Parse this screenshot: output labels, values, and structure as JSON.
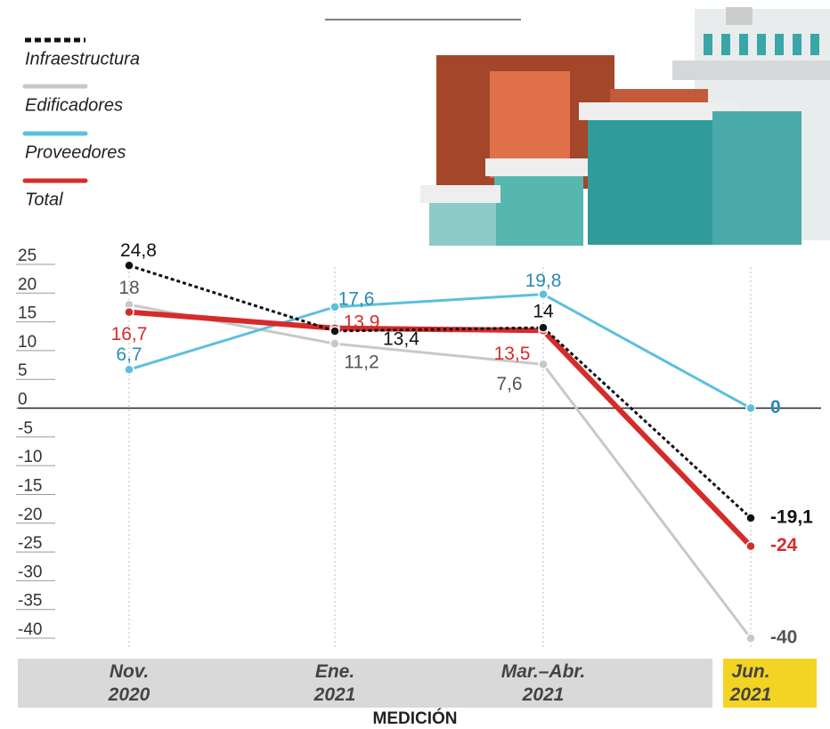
{
  "chart_data": {
    "type": "line",
    "x_label": "MEDICIÓN",
    "categories": [
      "Nov. 2020",
      "Ene. 2021",
      "Mar.–Abr. 2021",
      "Jun. 2021"
    ],
    "ylim": [
      -40,
      25
    ],
    "yticks": [
      25,
      20,
      15,
      10,
      5,
      0,
      -5,
      -10,
      -15,
      -20,
      -25,
      -30,
      -35,
      -40
    ],
    "series": [
      {
        "name": "Infraestructura",
        "color": "#111111",
        "dashed": true,
        "values": [
          24.8,
          13.4,
          14,
          -19.1
        ],
        "value_labels": [
          "24,8",
          "13,4",
          "14",
          "-19,1"
        ]
      },
      {
        "name": "Edificadores",
        "color": "#c8c8c8",
        "values": [
          18,
          11.2,
          7.6,
          -40
        ],
        "value_labels": [
          "18",
          "11,2",
          "7,6",
          "-40"
        ]
      },
      {
        "name": "Proveedores",
        "color": "#5bc0de",
        "values": [
          6.7,
          17.6,
          19.8,
          0
        ],
        "value_labels": [
          "6,7",
          "17,6",
          "19,8",
          "0"
        ]
      },
      {
        "name": "Total",
        "color": "#d62b2b",
        "values": [
          16.7,
          13.9,
          13.5,
          -24
        ],
        "value_labels": [
          "16,7",
          "13,9",
          "13,5",
          "-24"
        ]
      }
    ]
  }
}
